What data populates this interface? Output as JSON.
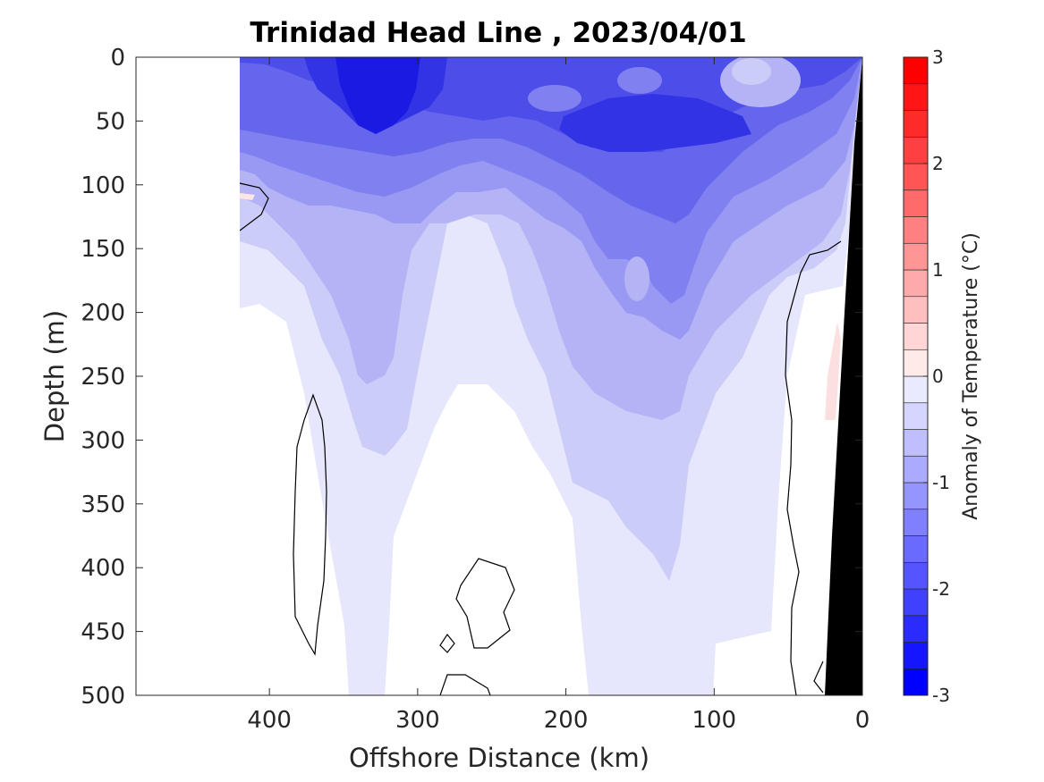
{
  "chart_data": {
    "type": "heatmap",
    "title": "Trinidad Head Line , 2023/04/01",
    "xlabel": "Offshore Distance (km)",
    "ylabel": "Depth (m)",
    "colorbar_label": "Anomaly of Temperature (°C)",
    "xlim": [
      490,
      0
    ],
    "ylim": [
      500,
      0
    ],
    "x_ticks": [
      400,
      300,
      200,
      100,
      0
    ],
    "x_tick_labels": [
      "400",
      "300",
      "200",
      "100",
      "0"
    ],
    "y_ticks": [
      0,
      50,
      100,
      150,
      200,
      250,
      300,
      350,
      400,
      450,
      500
    ],
    "y_tick_labels": [
      "0",
      "50",
      "100",
      "150",
      "200",
      "250",
      "300",
      "350",
      "400",
      "450",
      "500"
    ],
    "colorbar_ticks": [
      3,
      2,
      1,
      0,
      -1,
      -2,
      -3
    ],
    "colorbar_tick_labels": [
      "3",
      "2",
      "1",
      "0",
      "-1",
      "-2",
      "-3"
    ],
    "color_levels": [
      -3,
      -2.75,
      -2.5,
      -2.25,
      -2,
      -1.75,
      -1.5,
      -1.25,
      -1,
      -0.75,
      -0.5,
      -0.25,
      0,
      0.25,
      0.5,
      0.75,
      1,
      1.25,
      1.5,
      1.75,
      2,
      2.25,
      2.5,
      2.75,
      3
    ],
    "colormap_endpoints": {
      "min": "#0000ff",
      "zero": "#ffffff",
      "max": "#ff0000"
    },
    "data_coverage_km": [
      0,
      420
    ],
    "land_color": "#000000",
    "grid": false,
    "depths_m": [
      0,
      25,
      50,
      75,
      100,
      150,
      200,
      250,
      300,
      350,
      400,
      450,
      500
    ],
    "distances_km": [
      420,
      380,
      340,
      300,
      260,
      220,
      180,
      140,
      100,
      60,
      20
    ],
    "anomaly_values": [
      [
        -1.75,
        -2.0,
        -2.75,
        -2.25,
        -1.25,
        -1.5,
        -2.0,
        -1.5,
        -1.5,
        -1.0,
        -1.5
      ],
      [
        -1.75,
        -2.25,
        -2.75,
        -2.5,
        -1.75,
        -1.75,
        -2.25,
        -2.0,
        -1.5,
        -1.25,
        -1.75
      ],
      [
        -1.5,
        -2.0,
        -2.5,
        -2.25,
        -1.75,
        -1.75,
        -2.25,
        -2.25,
        -1.75,
        -1.25,
        -1.0
      ],
      [
        -0.75,
        -1.5,
        -1.75,
        -1.75,
        -1.5,
        -1.75,
        -1.75,
        -1.75,
        -1.5,
        -1.0,
        -0.75
      ],
      [
        0.1,
        -1.0,
        -1.25,
        -1.25,
        -1.0,
        -1.25,
        -1.5,
        -1.5,
        -1.25,
        -0.75,
        -0.25
      ],
      [
        -0.25,
        -0.5,
        -0.75,
        -0.75,
        -0.5,
        -0.75,
        -1.0,
        -1.25,
        -1.0,
        -0.5,
        0.0
      ],
      [
        -0.25,
        -0.25,
        -0.75,
        -0.75,
        -0.5,
        -0.75,
        -1.0,
        -1.0,
        -0.75,
        -0.25,
        0.0
      ],
      [
        -0.25,
        0.0,
        -0.5,
        -0.75,
        -0.5,
        -0.5,
        -0.75,
        -0.75,
        -0.5,
        -0.25,
        0.1
      ],
      [
        -0.25,
        0.0,
        -0.5,
        -0.5,
        0.0,
        -0.25,
        -0.5,
        -0.5,
        -0.5,
        -0.25,
        0.0
      ],
      [
        -0.25,
        0.0,
        -0.25,
        -0.25,
        0.0,
        0.0,
        -0.25,
        -0.5,
        -0.25,
        0.0,
        0.0
      ],
      [
        -0.25,
        0.0,
        -0.25,
        -0.25,
        0.0,
        0.0,
        -0.25,
        -0.25,
        -0.25,
        0.0,
        0.0
      ],
      [
        -0.25,
        -0.25,
        -0.25,
        0.0,
        0.0,
        0.0,
        -0.25,
        -0.25,
        0.0,
        0.0,
        0.0
      ],
      [
        -0.25,
        -0.25,
        -0.25,
        0.0,
        0.0,
        0.0,
        -0.25,
        -0.25,
        0.0,
        0.0,
        0.0
      ]
    ]
  }
}
